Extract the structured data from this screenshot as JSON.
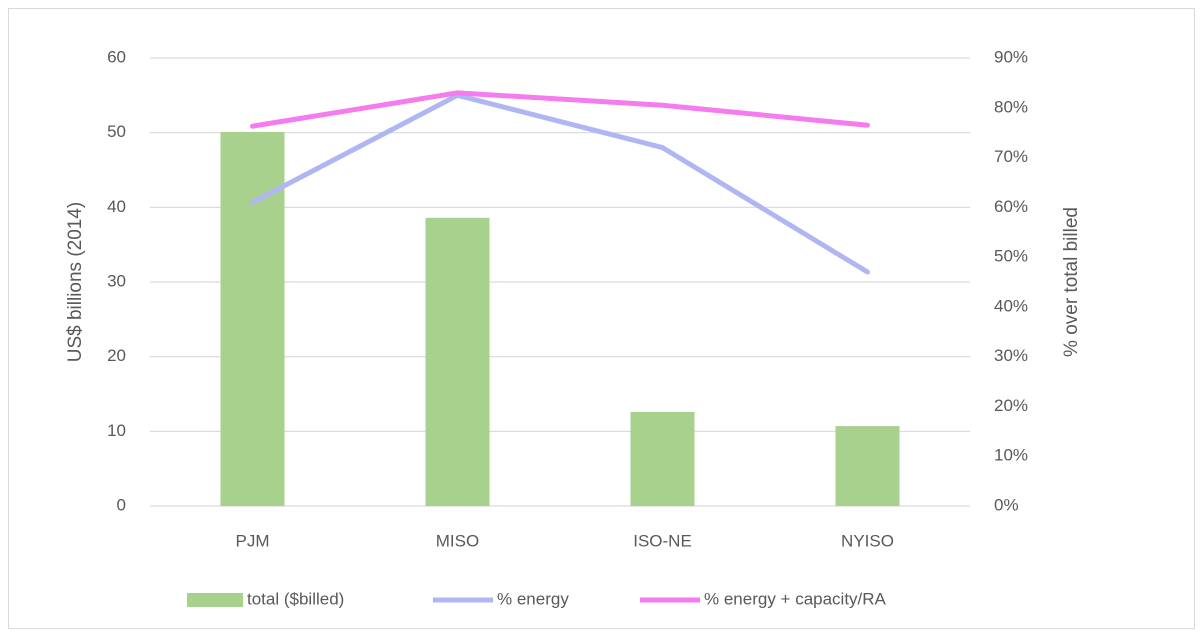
{
  "chart_data": {
    "type": "bar_line",
    "categories": [
      "PJM",
      "MISO",
      "ISO-NE",
      "NYISO"
    ],
    "ylabel": "US$ billions (2014)",
    "y2label": "% over total billed",
    "ylim": [
      0,
      60
    ],
    "yticks": [
      0,
      10,
      20,
      30,
      40,
      50,
      60
    ],
    "y2lim": [
      0,
      90
    ],
    "y2ticks": [
      {
        "value": 0,
        "label": "0%"
      },
      {
        "value": 10,
        "label": "10%"
      },
      {
        "value": 20,
        "label": "20%"
      },
      {
        "value": 30,
        "label": "30%"
      },
      {
        "value": 40,
        "label": "40%"
      },
      {
        "value": 50,
        "label": "50%"
      },
      {
        "value": 60,
        "label": "60%"
      },
      {
        "value": 70,
        "label": "70%"
      },
      {
        "value": 80,
        "label": "80%"
      },
      {
        "value": 90,
        "label": "90%"
      }
    ],
    "grid": true,
    "legend": "bottom",
    "series": [
      {
        "name": "total ($billed)",
        "type": "bar",
        "color": "#a9d18e",
        "values": [
          50.1,
          38.6,
          12.6,
          10.7
        ]
      },
      {
        "name": "% energy",
        "type": "line",
        "axis": "y2",
        "color": "#b0b6f2",
        "values": [
          61,
          82.5,
          72,
          47
        ]
      },
      {
        "name": "% energy + capacity/RA",
        "type": "line",
        "axis": "y2",
        "color": "#f47cee",
        "values": [
          76.3,
          83,
          80.5,
          76.5
        ]
      }
    ]
  }
}
